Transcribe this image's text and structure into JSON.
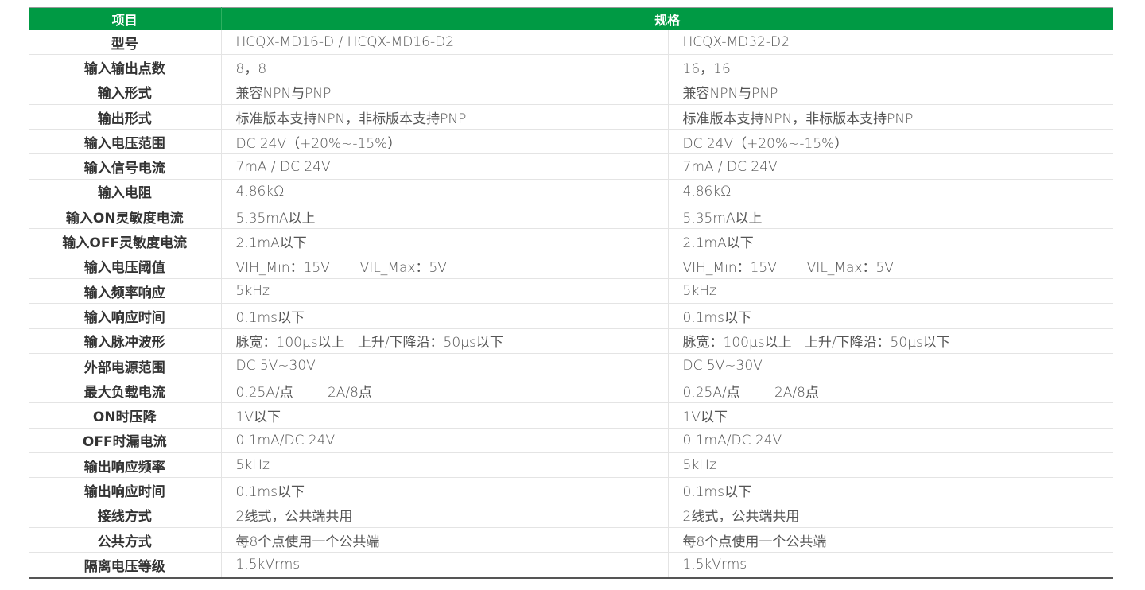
{
  "header": {
    "item": "项目",
    "spec": "规格"
  },
  "rows": [
    [
      "型号",
      "HCQX-MD16-D / HCQX-MD16-D2",
      "HCQX-MD32-D2"
    ],
    [
      "输入输出点数",
      "8，8",
      "16，16"
    ],
    [
      "输入形式",
      "兼容NPN与PNP",
      "兼容NPN与PNP"
    ],
    [
      "输出形式",
      "标准版本支持NPN，非标版本支持PNP",
      "标准版本支持NPN，非标版本支持PNP"
    ],
    [
      "输入电压范围",
      "DC 24V（+20%~-15%）",
      "DC 24V（+20%~-15%）"
    ],
    [
      "输入信号电流",
      "7mA / DC 24V",
      "7mA / DC 24V"
    ],
    [
      "输入电阻",
      "4.86kΩ",
      "4.86kΩ"
    ],
    [
      "输入ON灵敏度电流",
      "5.35mA以上",
      "5.35mA以上"
    ],
    [
      "输入OFF灵敏度电流",
      "2.1mA以下",
      "2.1mA以下"
    ],
    [
      "输入电压阈值",
      "VIH_Min：15V       VIL_Max：5V",
      "VIH_Min：15V       VIL_Max：5V"
    ],
    [
      "输入频率响应",
      "5kHz",
      "5kHz"
    ],
    [
      "输入响应时间",
      "0.1ms以下",
      "0.1ms以下"
    ],
    [
      "输入脉冲波形",
      "脉宽：100μs以上   上升/下降沿：50μs以下",
      "脉宽：100μs以上   上升/下降沿：50μs以下"
    ],
    [
      "外部电源范围",
      "DC 5V~30V",
      "DC 5V~30V"
    ],
    [
      "最大负载电流",
      "0.25A/点        2A/8点",
      "0.25A/点        2A/8点"
    ],
    [
      "ON时压降",
      "1V以下",
      "1V以下"
    ],
    [
      "OFF时漏电流",
      "0.1mA/DC 24V",
      "0.1mA/DC 24V"
    ],
    [
      "输出响应频率",
      "5kHz",
      "5kHz"
    ],
    [
      "输出响应时间",
      "0.1ms以下",
      "0.1ms以下"
    ],
    [
      "接线方式",
      "2线式，公共端共用",
      "2线式，公共端共用"
    ],
    [
      "公共方式",
      "每8个点使用一个公共端",
      "每8个点使用一个公共端"
    ],
    [
      "隔离电压等级",
      "1.5kVrms",
      "1.5kVrms"
    ]
  ],
  "colors": {
    "header_bg": "#009a44"
  }
}
